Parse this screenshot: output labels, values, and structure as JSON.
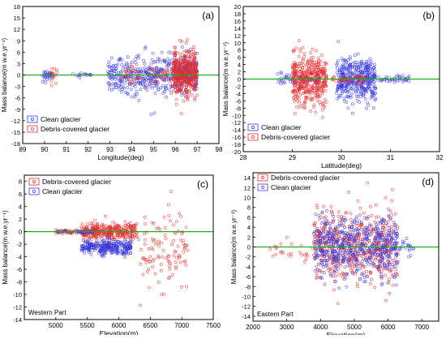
{
  "figure": {
    "panels": [
      {
        "id": "a",
        "panel_label": "(a)",
        "chart_data": {
          "type": "scatter",
          "xlabel": "Longitude(deg)",
          "ylabel": "Mass balance(m w.e.yr⁻¹)",
          "xlim": [
            89,
            98
          ],
          "ylim": [
            -18,
            18
          ],
          "xticks": [
            89,
            90,
            91,
            92,
            93,
            94,
            95,
            96,
            97,
            98
          ],
          "yticks": [
            -18,
            -15,
            -12,
            -9,
            -6,
            -3,
            0,
            3,
            6,
            9,
            12,
            15,
            18
          ],
          "reference_line": 0,
          "legend_position": "bottom-left",
          "series": [
            {
              "name": "Clean glacier",
              "color": "#3a3ad8",
              "clusters": [
                {
                  "x": [
                    89.9,
                    90.4
                  ],
                  "y_center": 0,
                  "y_spread": 1.2,
                  "count": 30
                },
                {
                  "x": [
                    91.3,
                    92.2
                  ],
                  "y_center": 0,
                  "y_spread": 0.6,
                  "count": 15
                },
                {
                  "x": [
                    92.9,
                    95.9
                  ],
                  "y_center": 0,
                  "y_spread": 4.5,
                  "count": 320
                },
                {
                  "x": [
                    95.9,
                    97.0
                  ],
                  "y_center": 0.5,
                  "y_spread": 4.5,
                  "count": 200
                }
              ]
            },
            {
              "name": "Debris-covered glacier",
              "color": "#e03030",
              "clusters": [
                {
                  "x": [
                    90.3,
                    90.6
                  ],
                  "y_center": 0,
                  "y_spread": 2.5,
                  "count": 15
                },
                {
                  "x": [
                    93.5,
                    95.9
                  ],
                  "y_center": 0,
                  "y_spread": 2.5,
                  "count": 60
                },
                {
                  "x": [
                    95.9,
                    97.0
                  ],
                  "y_center": 0.5,
                  "y_spread": 5.0,
                  "count": 420
                }
              ]
            }
          ]
        }
      },
      {
        "id": "b",
        "panel_label": "(b)",
        "chart_data": {
          "type": "scatter",
          "xlabel": "Latitude(deg)",
          "ylabel": "Mass balance(m w.e.yr⁻¹)",
          "xlim": [
            28,
            32
          ],
          "ylim": [
            -20,
            20
          ],
          "xticks": [
            28,
            29,
            30,
            31,
            32
          ],
          "yticks": [
            -20,
            -18,
            -16,
            -14,
            -12,
            -10,
            -8,
            -6,
            -4,
            -2,
            0,
            2,
            4,
            6,
            8,
            10,
            12,
            14,
            16,
            18,
            20
          ],
          "reference_line": 0,
          "legend_position": "bottom-left",
          "series": [
            {
              "name": "Clean glacier",
              "color": "#3a3ad8",
              "clusters": [
                {
                  "x": [
                    28.7,
                    29.6
                  ],
                  "y_center": 0,
                  "y_spread": 1.5,
                  "count": 60
                },
                {
                  "x": [
                    29.9,
                    30.7
                  ],
                  "y_center": 0,
                  "y_spread": 5.5,
                  "count": 400
                },
                {
                  "x": [
                    30.7,
                    31.5
                  ],
                  "y_center": 0,
                  "y_spread": 0.8,
                  "count": 40
                }
              ]
            },
            {
              "name": "Debris-covered glacier",
              "color": "#e03030",
              "clusters": [
                {
                  "x": [
                    29.0,
                    29.7
                  ],
                  "y_center": 0,
                  "y_spread": 6.0,
                  "count": 420
                },
                {
                  "x": [
                    29.8,
                    30.5
                  ],
                  "y_center": 0,
                  "y_spread": 1.0,
                  "count": 40
                }
              ]
            }
          ]
        }
      },
      {
        "id": "c",
        "panel_label": "(c)",
        "chart_data": {
          "type": "scatter",
          "xlabel": "Elevation(m)",
          "ylabel": "Mass balance(m w.e.yr⁻¹)",
          "xlim": [
            4500,
            7500
          ],
          "ylim": [
            -14,
            9
          ],
          "xticks": [
            5000,
            5500,
            6000,
            6500,
            7000,
            7500
          ],
          "yticks": [
            -14,
            -12,
            -10,
            -8,
            -6,
            -4,
            -2,
            0,
            2,
            4,
            6,
            8
          ],
          "reference_line": 0,
          "legend_position": "top-left",
          "annotation": "Western Part",
          "series": [
            {
              "name": "Debris-covered glacier",
              "color": "#e03030",
              "clusters": [
                {
                  "x": [
                    5000,
                    5400
                  ],
                  "y_center": 0,
                  "y_spread": 0.3,
                  "count": 40
                },
                {
                  "x": [
                    5400,
                    6300
                  ],
                  "y_center": 0,
                  "y_spread": 1.2,
                  "count": 330
                },
                {
                  "x": [
                    6300,
                    7100
                  ],
                  "y_center": -3,
                  "y_spread": 6.0,
                  "count": 110
                }
              ]
            },
            {
              "name": "Clean glacier",
              "color": "#3a3ad8",
              "clusters": [
                {
                  "x": [
                    5400,
                    6200
                  ],
                  "y_center": -2.5,
                  "y_spread": 1.0,
                  "count": 280
                },
                {
                  "x": [
                    5000,
                    5600
                  ],
                  "y_center": 0,
                  "y_spread": 0.3,
                  "count": 30
                }
              ]
            }
          ]
        }
      },
      {
        "id": "d",
        "panel_label": "(d)",
        "chart_data": {
          "type": "scatter",
          "xlabel": "Elevation(m)",
          "ylabel": "Mass balance(m w.e.yr⁻¹)",
          "xlim": [
            2000,
            7500
          ],
          "ylim": [
            -15,
            15
          ],
          "xticks": [
            2000,
            3000,
            4000,
            5000,
            6000,
            7000
          ],
          "yticks": [
            -14,
            -12,
            -10,
            -8,
            -6,
            -4,
            -2,
            0,
            2,
            4,
            6,
            8,
            10,
            12,
            14
          ],
          "reference_line": 0,
          "legend_position": "top-left",
          "annotation": "Eastern Part",
          "series": [
            {
              "name": "Debris-covered glacier",
              "color": "#e03030",
              "clusters": [
                {
                  "x": [
                    2500,
                    3800
                  ],
                  "y_center": -1,
                  "y_spread": 2.5,
                  "count": 25
                },
                {
                  "x": [
                    3800,
                    6300
                  ],
                  "y_center": 0,
                  "y_spread": 6.5,
                  "count": 550
                }
              ]
            },
            {
              "name": "Clean glacier",
              "color": "#3a3ad8",
              "clusters": [
                {
                  "x": [
                    3800,
                    6300
                  ],
                  "y_center": 0,
                  "y_spread": 5.5,
                  "count": 550
                },
                {
                  "x": [
                    6300,
                    6800
                  ],
                  "y_center": 0,
                  "y_spread": 2.0,
                  "count": 20
                }
              ]
            }
          ]
        }
      }
    ]
  },
  "colors": {
    "clean": "#3a3ad8",
    "debris": "#e03030",
    "zero_line": "#22aa22",
    "axis": "#000000"
  }
}
